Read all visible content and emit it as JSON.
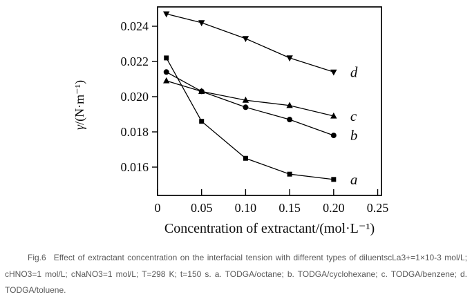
{
  "caption": {
    "label": "Fig.6",
    "text": "Effect of extractant concentration on the interfacial tension with different types of diluentscLa3+=1×10-3 mol/L; cHNO3=1 mol/L; cNaNO3=1 mol/L; T=298 K; t=150 s. a. TODGA/octane; b. TODGA/cyclohexane; c. TODGA/benzene; d. TODGA/toluene.",
    "color": "#595959"
  },
  "chart_data": {
    "type": "line",
    "title": "",
    "xlabel": "Concentration of extractant/(mol·L⁻¹)",
    "ylabel": "γ/(N·m⁻¹)",
    "x": [
      0.01,
      0.05,
      0.1,
      0.15,
      0.2
    ],
    "series": [
      {
        "name": "a",
        "marker": "square",
        "caption_ref": "TODGA/octane",
        "values": [
          0.0222,
          0.0186,
          0.0165,
          0.0156,
          0.0153
        ]
      },
      {
        "name": "b",
        "marker": "circle",
        "caption_ref": "TODGA/cyclohexane",
        "values": [
          0.0214,
          0.0203,
          0.0194,
          0.0187,
          0.0178
        ]
      },
      {
        "name": "c",
        "marker": "triangle-up",
        "caption_ref": "TODGA/benzene",
        "values": [
          0.0209,
          0.0203,
          0.0198,
          0.0195,
          0.0189
        ]
      },
      {
        "name": "d",
        "marker": "triangle-down",
        "caption_ref": "TODGA/toluene",
        "values": [
          0.0247,
          0.0242,
          0.0233,
          0.0222,
          0.0214
        ]
      }
    ],
    "x_ticks": [
      0,
      0.05,
      0.1,
      0.15,
      0.2,
      0.25
    ],
    "x_tick_labels": [
      "0",
      "0.05",
      "0.10",
      "0.15",
      "0.20",
      "0.25"
    ],
    "y_ticks": [
      0.016,
      0.018,
      0.02,
      0.022,
      0.024
    ],
    "y_tick_labels": [
      "0.016",
      "0.018",
      "0.020",
      "0.022",
      "0.024"
    ],
    "xlim": [
      0,
      0.2543
    ],
    "ylim": [
      0.014392,
      0.025098
    ],
    "grid": false,
    "line_color": "#000000",
    "marker_color": "#000000",
    "legend_position": "labels-right-of-last-point"
  }
}
